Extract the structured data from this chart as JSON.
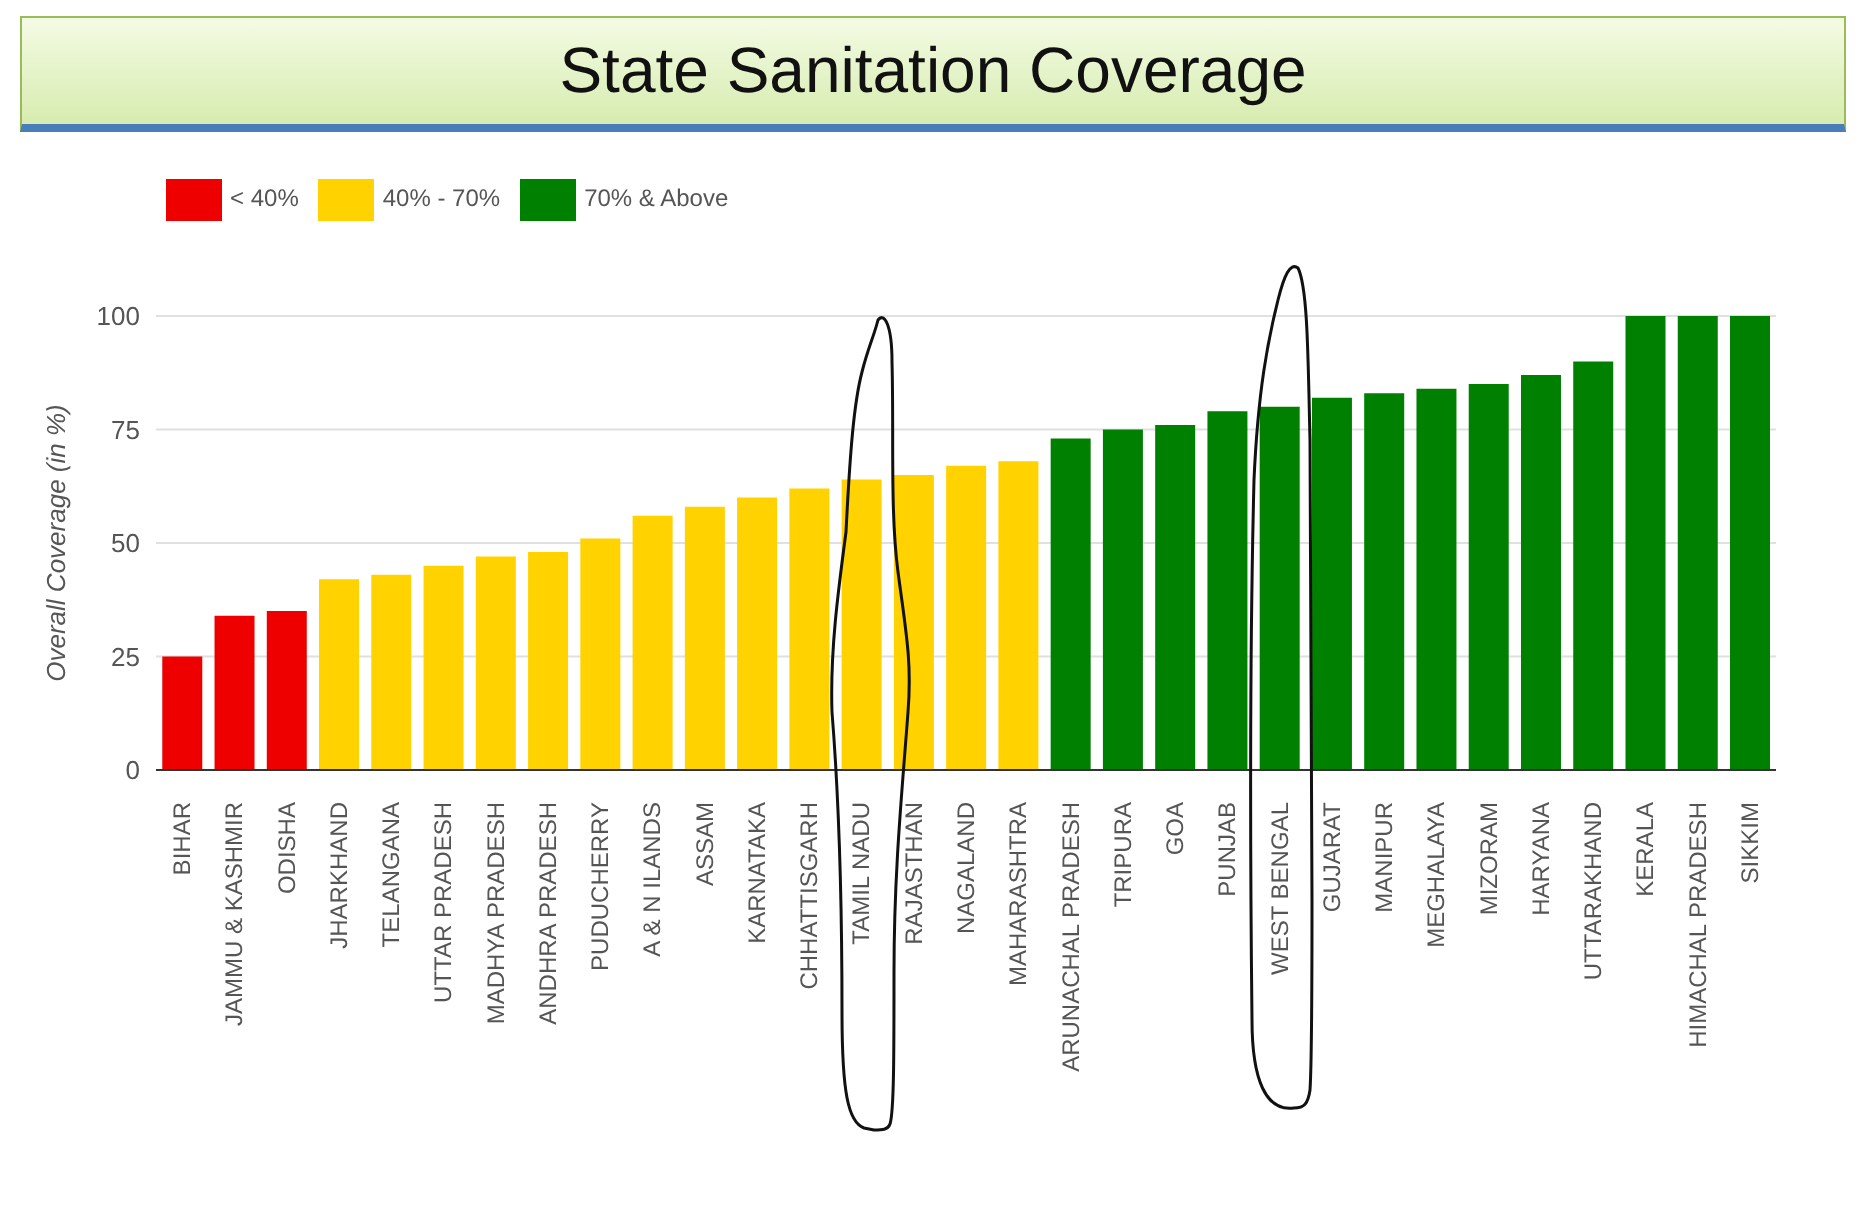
{
  "chart_data": {
    "type": "bar",
    "title": "State Sanitation Coverage",
    "ylabel": "Overall Coverage (in %)",
    "categories": [
      "BIHAR",
      "JAMMU & KASHMIR",
      "ODISHA",
      "JHARKHAND",
      "TELANGANA",
      "UTTAR PRADESH",
      "MADHYA PRADESH",
      "ANDHRA PRADESH",
      "PUDUCHERRY",
      "A & N ILANDS",
      "ASSAM",
      "KARNATAKA",
      "CHHATTISGARH",
      "TAMIL NADU",
      "RAJASTHAN",
      "NAGALAND",
      "MAHARASHTRA",
      "ARUNACHAL PRADESH",
      "TRIPURA",
      "GOA",
      "PUNJAB",
      "WEST BENGAL",
      "GUJARAT",
      "MANIPUR",
      "MEGHALAYA",
      "MIZORAM",
      "HARYANA",
      "UTTARAKHAND",
      "KERALA",
      "HIMACHAL PRADESH",
      "SIKKIM"
    ],
    "stacked": true,
    "series": [
      {
        "name": "< 40%",
        "color": "#ee0000",
        "values": [
          25,
          34,
          35,
          null,
          null,
          null,
          null,
          null,
          null,
          null,
          null,
          null,
          null,
          null,
          null,
          null,
          null,
          null,
          null,
          null,
          null,
          null,
          null,
          null,
          null,
          null,
          null,
          null,
          null,
          null,
          null
        ]
      },
      {
        "name": "40% - 70%",
        "color": "#ffd200",
        "values": [
          null,
          null,
          null,
          42,
          43,
          45,
          47,
          48,
          51,
          56,
          58,
          60,
          62,
          64,
          65,
          67,
          68,
          null,
          null,
          null,
          null,
          null,
          null,
          null,
          null,
          null,
          null,
          null,
          null,
          null,
          null
        ]
      },
      {
        "name": "70% & Above",
        "color": "#008000",
        "values": [
          null,
          null,
          null,
          null,
          null,
          null,
          null,
          null,
          null,
          null,
          null,
          null,
          null,
          null,
          null,
          null,
          null,
          73,
          75,
          76,
          79,
          80,
          82,
          83,
          84,
          85,
          87,
          90,
          100,
          100,
          100
        ]
      }
    ],
    "ylim": [
      0,
      100
    ],
    "yticks": [
      0,
      25,
      50,
      75,
      100
    ],
    "grid": "y",
    "legend": "top left"
  }
}
